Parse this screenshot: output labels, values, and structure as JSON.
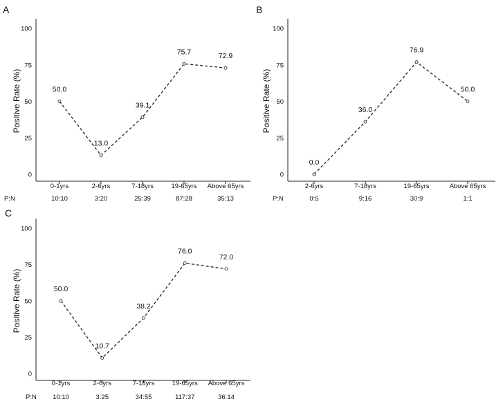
{
  "chart_data": [
    {
      "type": "line",
      "panel": "A",
      "ylabel": "Positive Rate (%)",
      "ylim": [
        0,
        100
      ],
      "yticks": [
        0,
        25,
        50,
        75,
        100
      ],
      "categories": [
        "0-1yrs",
        "2-6yrs",
        "7-18yrs",
        "19-65yrs",
        "Above 65yrs"
      ],
      "values": [
        50.0,
        13.0,
        39.1,
        75.7,
        72.9
      ],
      "labels": [
        "50.0",
        "13.0",
        "39.1",
        "75.7",
        "72.9"
      ],
      "ratio_label": "P:N",
      "ratios": [
        "10:10",
        "3:20",
        "25:39",
        "87:28",
        "35:13"
      ],
      "line_style": "dashed",
      "color": "#222222"
    },
    {
      "type": "line",
      "panel": "B",
      "ylabel": "Positive Rate (%)",
      "ylim": [
        0,
        100
      ],
      "yticks": [
        0,
        25,
        50,
        75,
        100
      ],
      "categories": [
        "2-6yrs",
        "7-18yrs",
        "19-65yrs",
        "Above 65yrs"
      ],
      "values": [
        0.0,
        36.0,
        76.9,
        50.0
      ],
      "labels": [
        "0.0",
        "36.0",
        "76.9",
        "50.0"
      ],
      "ratio_label": "P:N",
      "ratios": [
        "0:5",
        "9:16",
        "30:9",
        "1:1"
      ],
      "line_style": "dashed",
      "color": "#222222"
    },
    {
      "type": "line",
      "panel": "C",
      "ylabel": "Positive Rate (%)",
      "ylim": [
        0,
        100
      ],
      "yticks": [
        0,
        25,
        50,
        75,
        100
      ],
      "categories": [
        "0-1yrs",
        "2-6yrs",
        "7-18yrs",
        "19-65yrs",
        "Above 65yrs"
      ],
      "values": [
        50.0,
        10.7,
        38.2,
        76.0,
        72.0
      ],
      "labels": [
        "50.0",
        "10.7",
        "38.2",
        "76.0",
        "72.0"
      ],
      "ratio_label": "P:N",
      "ratios": [
        "10:10",
        "3:25",
        "34:55",
        "117:37",
        "36:14"
      ],
      "line_style": "dashed",
      "color": "#222222"
    }
  ]
}
